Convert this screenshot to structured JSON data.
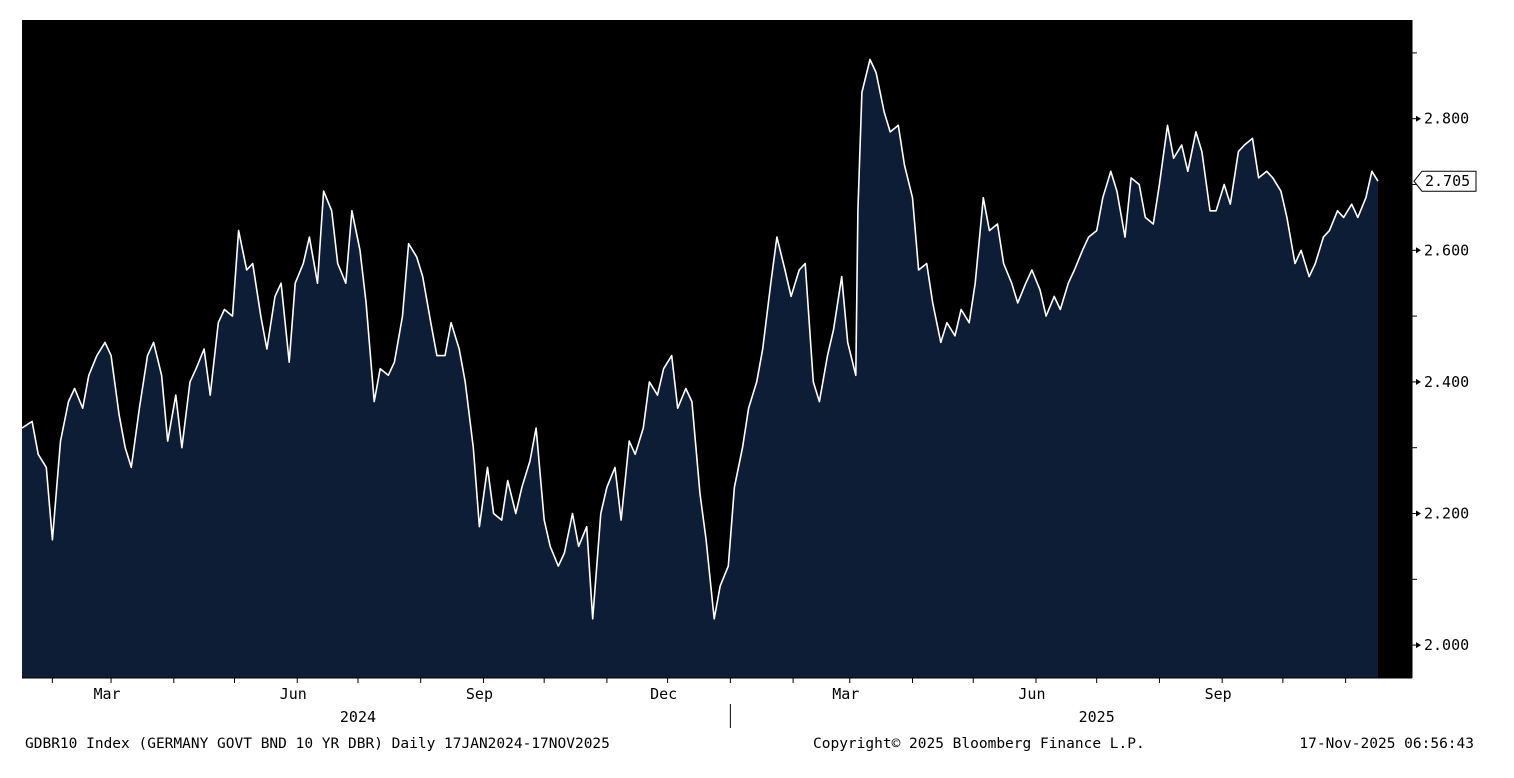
{
  "chart_data": {
    "type": "area",
    "title": "",
    "xlabel": "",
    "ylabel": "",
    "x_start": "2024-01-17",
    "x_end": "2025-11-17",
    "ylim": [
      1.95,
      2.95
    ],
    "y_ticks": [
      "2.000",
      "2.200",
      "2.400",
      "2.600",
      "2.800"
    ],
    "last_value_label": "2.705",
    "x_month_labels": [
      {
        "label": "Mar",
        "date": "2024-03-01"
      },
      {
        "label": "Jun",
        "date": "2024-06-01"
      },
      {
        "label": "Sep",
        "date": "2024-09-01"
      },
      {
        "label": "Dec",
        "date": "2024-12-01"
      },
      {
        "label": "Mar",
        "date": "2025-03-01"
      },
      {
        "label": "Jun",
        "date": "2025-06-01"
      },
      {
        "label": "Sep",
        "date": "2025-09-01"
      }
    ],
    "x_year_labels": [
      {
        "label": "2024",
        "date": "2024-07-01"
      },
      {
        "label": "2025",
        "date": "2025-07-01"
      }
    ],
    "x_minor_tick_dates": [
      "2024-02-01",
      "2024-04-01",
      "2024-05-01",
      "2024-07-01",
      "2024-08-01",
      "2024-10-01",
      "2024-11-01",
      "2025-01-01",
      "2025-02-01",
      "2025-04-01",
      "2025-05-01",
      "2025-07-01",
      "2025-08-01",
      "2025-10-01",
      "2025-11-01"
    ],
    "year_divider_date": "2025-01-01",
    "grid": false,
    "colors": {
      "background": "#000000",
      "area_fill": "#0d1d36",
      "line": "#ffffff"
    },
    "series": [
      {
        "points": [
          [
            "2024-01-17",
            2.33
          ],
          [
            "2024-01-22",
            2.34
          ],
          [
            "2024-01-25",
            2.29
          ],
          [
            "2024-01-29",
            2.27
          ],
          [
            "2024-02-01",
            2.16
          ],
          [
            "2024-02-05",
            2.31
          ],
          [
            "2024-02-09",
            2.37
          ],
          [
            "2024-02-12",
            2.39
          ],
          [
            "2024-02-16",
            2.36
          ],
          [
            "2024-02-19",
            2.41
          ],
          [
            "2024-02-23",
            2.44
          ],
          [
            "2024-02-27",
            2.46
          ],
          [
            "2024-03-01",
            2.44
          ],
          [
            "2024-03-05",
            2.35
          ],
          [
            "2024-03-08",
            2.3
          ],
          [
            "2024-03-11",
            2.27
          ],
          [
            "2024-03-15",
            2.36
          ],
          [
            "2024-03-19",
            2.44
          ],
          [
            "2024-03-22",
            2.46
          ],
          [
            "2024-03-26",
            2.41
          ],
          [
            "2024-03-29",
            2.31
          ],
          [
            "2024-04-02",
            2.38
          ],
          [
            "2024-04-05",
            2.3
          ],
          [
            "2024-04-09",
            2.4
          ],
          [
            "2024-04-12",
            2.42
          ],
          [
            "2024-04-16",
            2.45
          ],
          [
            "2024-04-19",
            2.38
          ],
          [
            "2024-04-23",
            2.49
          ],
          [
            "2024-04-26",
            2.51
          ],
          [
            "2024-04-30",
            2.5
          ],
          [
            "2024-05-03",
            2.63
          ],
          [
            "2024-05-07",
            2.57
          ],
          [
            "2024-05-10",
            2.58
          ],
          [
            "2024-05-14",
            2.5
          ],
          [
            "2024-05-17",
            2.45
          ],
          [
            "2024-05-21",
            2.53
          ],
          [
            "2024-05-24",
            2.55
          ],
          [
            "2024-05-28",
            2.43
          ],
          [
            "2024-05-31",
            2.55
          ],
          [
            "2024-06-04",
            2.58
          ],
          [
            "2024-06-07",
            2.62
          ],
          [
            "2024-06-11",
            2.55
          ],
          [
            "2024-06-14",
            2.69
          ],
          [
            "2024-06-18",
            2.66
          ],
          [
            "2024-06-21",
            2.58
          ],
          [
            "2024-06-25",
            2.55
          ],
          [
            "2024-06-28",
            2.66
          ],
          [
            "2024-07-02",
            2.6
          ],
          [
            "2024-07-05",
            2.52
          ],
          [
            "2024-07-09",
            2.37
          ],
          [
            "2024-07-12",
            2.42
          ],
          [
            "2024-07-16",
            2.41
          ],
          [
            "2024-07-19",
            2.43
          ],
          [
            "2024-07-23",
            2.5
          ],
          [
            "2024-07-26",
            2.61
          ],
          [
            "2024-07-30",
            2.59
          ],
          [
            "2024-08-02",
            2.56
          ],
          [
            "2024-08-06",
            2.49
          ],
          [
            "2024-08-09",
            2.44
          ],
          [
            "2024-08-13",
            2.44
          ],
          [
            "2024-08-16",
            2.49
          ],
          [
            "2024-08-20",
            2.45
          ],
          [
            "2024-08-23",
            2.4
          ],
          [
            "2024-08-27",
            2.3
          ],
          [
            "2024-08-30",
            2.18
          ],
          [
            "2024-09-03",
            2.27
          ],
          [
            "2024-09-06",
            2.2
          ],
          [
            "2024-09-10",
            2.19
          ],
          [
            "2024-09-13",
            2.25
          ],
          [
            "2024-09-17",
            2.2
          ],
          [
            "2024-09-20",
            2.24
          ],
          [
            "2024-09-24",
            2.28
          ],
          [
            "2024-09-27",
            2.33
          ],
          [
            "2024-10-01",
            2.19
          ],
          [
            "2024-10-04",
            2.15
          ],
          [
            "2024-10-08",
            2.12
          ],
          [
            "2024-10-11",
            2.14
          ],
          [
            "2024-10-15",
            2.2
          ],
          [
            "2024-10-18",
            2.15
          ],
          [
            "2024-10-22",
            2.18
          ],
          [
            "2024-10-25",
            2.04
          ],
          [
            "2024-10-29",
            2.2
          ],
          [
            "2024-11-01",
            2.24
          ],
          [
            "2024-11-05",
            2.27
          ],
          [
            "2024-11-08",
            2.19
          ],
          [
            "2024-11-12",
            2.31
          ],
          [
            "2024-11-15",
            2.29
          ],
          [
            "2024-11-19",
            2.33
          ],
          [
            "2024-11-22",
            2.4
          ],
          [
            "2024-11-26",
            2.38
          ],
          [
            "2024-11-29",
            2.42
          ],
          [
            "2024-12-03",
            2.44
          ],
          [
            "2024-12-06",
            2.36
          ],
          [
            "2024-12-10",
            2.39
          ],
          [
            "2024-12-13",
            2.37
          ],
          [
            "2024-12-17",
            2.23
          ],
          [
            "2024-12-20",
            2.16
          ],
          [
            "2024-12-24",
            2.04
          ],
          [
            "2024-12-27",
            2.09
          ],
          [
            "2024-12-31",
            2.12
          ],
          [
            "2025-01-03",
            2.24
          ],
          [
            "2025-01-07",
            2.3
          ],
          [
            "2025-01-10",
            2.36
          ],
          [
            "2025-01-14",
            2.4
          ],
          [
            "2025-01-17",
            2.45
          ],
          [
            "2025-01-21",
            2.55
          ],
          [
            "2025-01-24",
            2.62
          ],
          [
            "2025-01-28",
            2.57
          ],
          [
            "2025-01-31",
            2.53
          ],
          [
            "2025-02-04",
            2.57
          ],
          [
            "2025-02-07",
            2.58
          ],
          [
            "2025-02-11",
            2.4
          ],
          [
            "2025-02-14",
            2.37
          ],
          [
            "2025-02-18",
            2.44
          ],
          [
            "2025-02-21",
            2.48
          ],
          [
            "2025-02-25",
            2.56
          ],
          [
            "2025-02-28",
            2.46
          ],
          [
            "2025-03-04",
            2.41
          ],
          [
            "2025-03-05",
            2.66
          ],
          [
            "2025-03-07",
            2.84
          ],
          [
            "2025-03-11",
            2.89
          ],
          [
            "2025-03-14",
            2.87
          ],
          [
            "2025-03-18",
            2.81
          ],
          [
            "2025-03-21",
            2.78
          ],
          [
            "2025-03-25",
            2.79
          ],
          [
            "2025-03-28",
            2.73
          ],
          [
            "2025-04-01",
            2.68
          ],
          [
            "2025-04-04",
            2.57
          ],
          [
            "2025-04-08",
            2.58
          ],
          [
            "2025-04-11",
            2.52
          ],
          [
            "2025-04-15",
            2.46
          ],
          [
            "2025-04-18",
            2.49
          ],
          [
            "2025-04-22",
            2.47
          ],
          [
            "2025-04-25",
            2.51
          ],
          [
            "2025-04-29",
            2.49
          ],
          [
            "2025-05-02",
            2.55
          ],
          [
            "2025-05-06",
            2.68
          ],
          [
            "2025-05-09",
            2.63
          ],
          [
            "2025-05-13",
            2.64
          ],
          [
            "2025-05-16",
            2.58
          ],
          [
            "2025-05-20",
            2.55
          ],
          [
            "2025-05-23",
            2.52
          ],
          [
            "2025-05-27",
            2.55
          ],
          [
            "2025-05-30",
            2.57
          ],
          [
            "2025-06-03",
            2.54
          ],
          [
            "2025-06-06",
            2.5
          ],
          [
            "2025-06-10",
            2.53
          ],
          [
            "2025-06-13",
            2.51
          ],
          [
            "2025-06-17",
            2.55
          ],
          [
            "2025-06-20",
            2.57
          ],
          [
            "2025-06-24",
            2.6
          ],
          [
            "2025-06-27",
            2.62
          ],
          [
            "2025-07-01",
            2.63
          ],
          [
            "2025-07-04",
            2.68
          ],
          [
            "2025-07-08",
            2.72
          ],
          [
            "2025-07-11",
            2.69
          ],
          [
            "2025-07-15",
            2.62
          ],
          [
            "2025-07-18",
            2.71
          ],
          [
            "2025-07-22",
            2.7
          ],
          [
            "2025-07-25",
            2.65
          ],
          [
            "2025-07-29",
            2.64
          ],
          [
            "2025-08-01",
            2.7
          ],
          [
            "2025-08-05",
            2.79
          ],
          [
            "2025-08-08",
            2.74
          ],
          [
            "2025-08-12",
            2.76
          ],
          [
            "2025-08-15",
            2.72
          ],
          [
            "2025-08-19",
            2.78
          ],
          [
            "2025-08-22",
            2.75
          ],
          [
            "2025-08-26",
            2.66
          ],
          [
            "2025-08-29",
            2.66
          ],
          [
            "2025-09-02",
            2.7
          ],
          [
            "2025-09-05",
            2.67
          ],
          [
            "2025-09-09",
            2.75
          ],
          [
            "2025-09-12",
            2.76
          ],
          [
            "2025-09-16",
            2.77
          ],
          [
            "2025-09-19",
            2.71
          ],
          [
            "2025-09-23",
            2.72
          ],
          [
            "2025-09-26",
            2.71
          ],
          [
            "2025-09-30",
            2.69
          ],
          [
            "2025-10-03",
            2.65
          ],
          [
            "2025-10-07",
            2.58
          ],
          [
            "2025-10-10",
            2.6
          ],
          [
            "2025-10-14",
            2.56
          ],
          [
            "2025-10-17",
            2.58
          ],
          [
            "2025-10-21",
            2.62
          ],
          [
            "2025-10-24",
            2.63
          ],
          [
            "2025-10-28",
            2.66
          ],
          [
            "2025-10-31",
            2.65
          ],
          [
            "2025-11-04",
            2.67
          ],
          [
            "2025-11-07",
            2.65
          ],
          [
            "2025-11-11",
            2.68
          ],
          [
            "2025-11-14",
            2.72
          ],
          [
            "2025-11-17",
            2.705
          ]
        ]
      }
    ]
  },
  "footer": {
    "left_text": "GDBR10 Index (GERMANY GOVT BND 10 YR DBR) Daily 17JAN2024-17NOV2025",
    "center_text": "Copyright© 2025 Bloomberg Finance L.P.",
    "right_text": "17-Nov-2025 06:56:43"
  }
}
